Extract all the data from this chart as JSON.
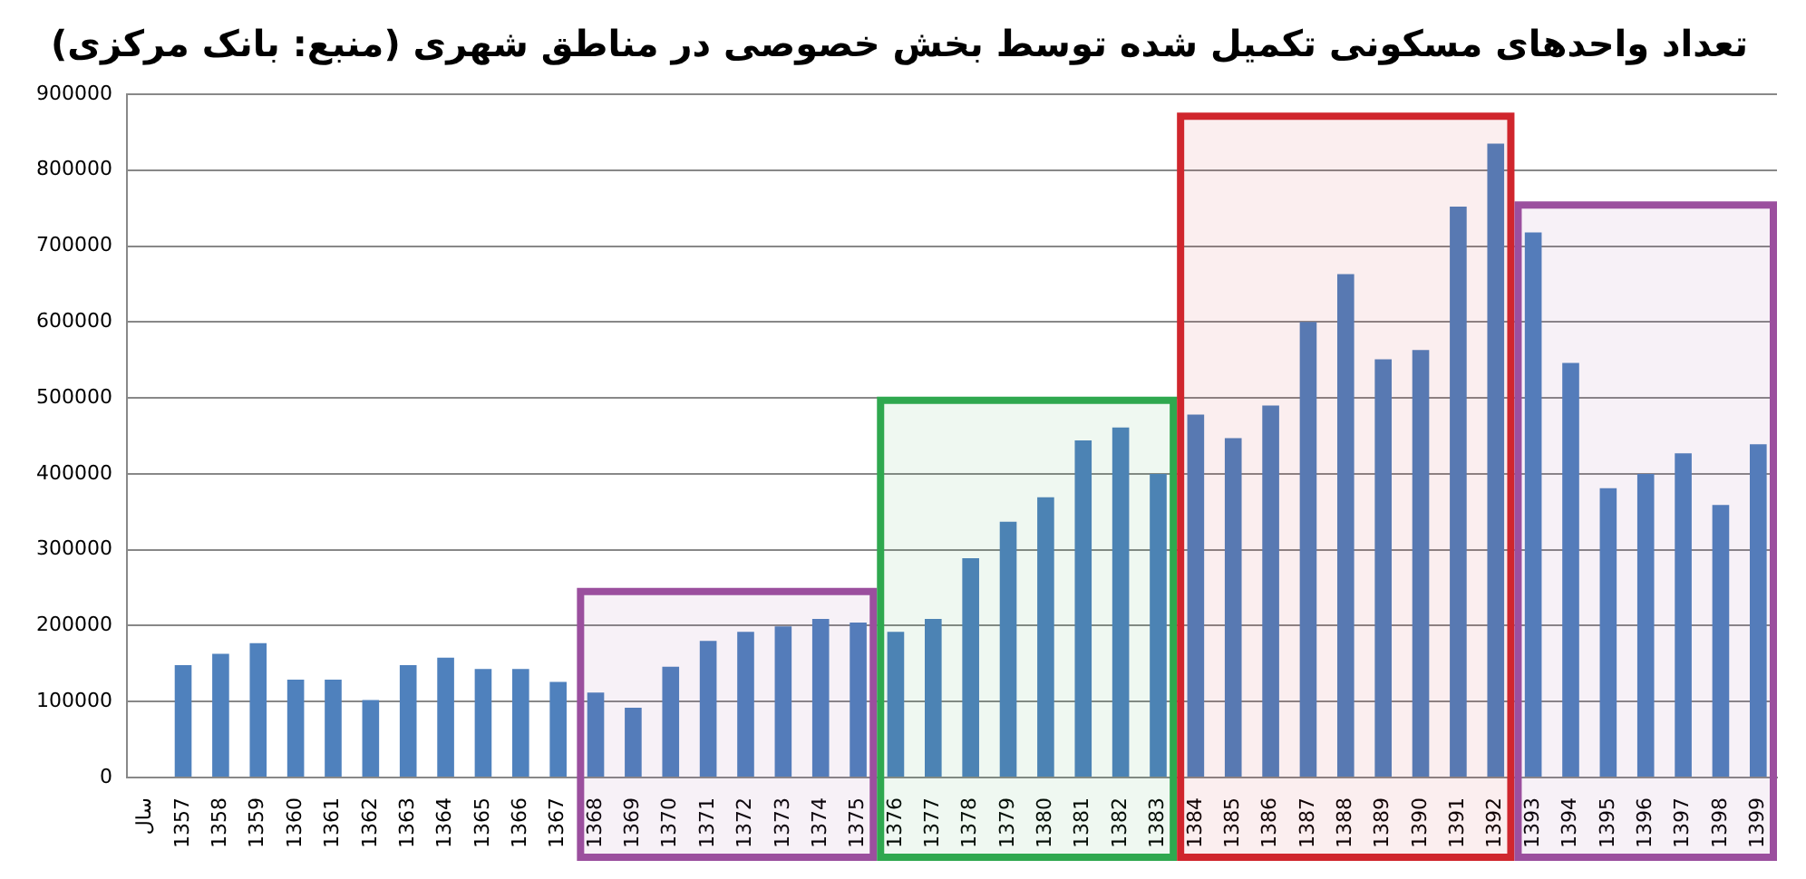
{
  "chart_data": {
    "type": "bar",
    "title": "تعداد واحدهای مسکونی تکمیل شده توسط بخش خصوصی در مناطق شهری (منبع: بانک مرکزی)",
    "categories": [
      "سال",
      "1357",
      "1358",
      "1359",
      "1360",
      "1361",
      "1362",
      "1363",
      "1364",
      "1365",
      "1366",
      "1367",
      "1368",
      "1369",
      "1370",
      "1371",
      "1372",
      "1373",
      "1374",
      "1375",
      "1376",
      "1377",
      "1378",
      "1379",
      "1380",
      "1381",
      "1382",
      "1383",
      "1384",
      "1385",
      "1386",
      "1387",
      "1388",
      "1389",
      "1390",
      "1391",
      "1392",
      "1393",
      "1394",
      "1395",
      "1396",
      "1397",
      "1398",
      "1399"
    ],
    "series": [
      {
        "color": "#4f81bd",
        "values": [
          null,
          148000,
          163000,
          177000,
          129000,
          129000,
          102000,
          148000,
          158000,
          143000,
          143000,
          126000,
          112000,
          92000,
          146000,
          180000,
          192000,
          199000,
          209000,
          204000,
          192000,
          209000,
          289000,
          337000,
          369000,
          444000,
          461000,
          400000,
          478000,
          447000,
          490000,
          600000,
          663000,
          551000,
          563000,
          752000,
          835000,
          718000,
          546000,
          381000,
          400000,
          427000,
          359000,
          439000
        ]
      }
    ],
    "ylim": [
      0,
      900000
    ],
    "yticks": [
      0,
      100000,
      200000,
      300000,
      400000,
      500000,
      600000,
      700000,
      800000,
      900000
    ],
    "grid": "y",
    "legend": false,
    "bands": [
      {
        "axis": "x",
        "from": "1368",
        "to": "1375",
        "color": "#9b4f9e"
      },
      {
        "axis": "x",
        "from": "1376",
        "to": "1383",
        "color": "#2fa84f"
      },
      {
        "axis": "x",
        "from": "1384",
        "to": "1392",
        "color": "#d0262d"
      },
      {
        "axis": "x",
        "from": "1393",
        "to": "1399",
        "color": "#9b4f9e"
      }
    ]
  }
}
